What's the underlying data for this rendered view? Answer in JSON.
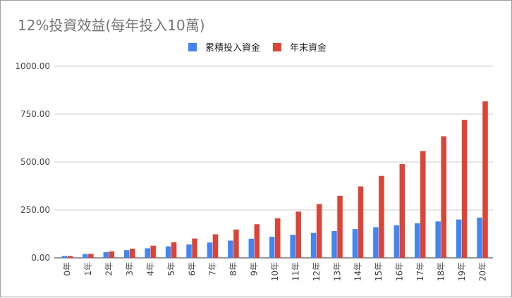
{
  "chart_data": {
    "type": "bar",
    "title": "12%投資效益(每年投入10萬)",
    "xlabel": "",
    "ylabel": "",
    "ylim": [
      0,
      1000
    ],
    "yticks": [
      "0.00",
      "250.00",
      "500.00",
      "750.00",
      "1000.00"
    ],
    "ytick_values": [
      0,
      250,
      500,
      750,
      1000
    ],
    "grid": true,
    "legend_position": "top",
    "categories": [
      "0年",
      "1年",
      "2年",
      "3年",
      "4年",
      "5年",
      "6年",
      "7年",
      "8年",
      "9年",
      "10年",
      "11年",
      "12年",
      "13年",
      "14年",
      "15年",
      "16年",
      "17年",
      "18年",
      "19年",
      "20年"
    ],
    "series": [
      {
        "name": "累積投入資金",
        "color": "#4285f4",
        "values": [
          10,
          20,
          30,
          40,
          50,
          60,
          70,
          80,
          90,
          100,
          110,
          120,
          130,
          140,
          150,
          160,
          170,
          180,
          190,
          200,
          210
        ]
      },
      {
        "name": "年末資金",
        "color": "#db4437",
        "values": [
          10.0,
          21.2,
          33.74,
          47.79,
          63.53,
          81.15,
          100.89,
          123.0,
          147.76,
          175.49,
          206.55,
          241.33,
          280.29,
          323.93,
          372.8,
          427.53,
          488.84,
          557.5,
          634.4,
          720.52,
          816.99
        ]
      }
    ]
  }
}
